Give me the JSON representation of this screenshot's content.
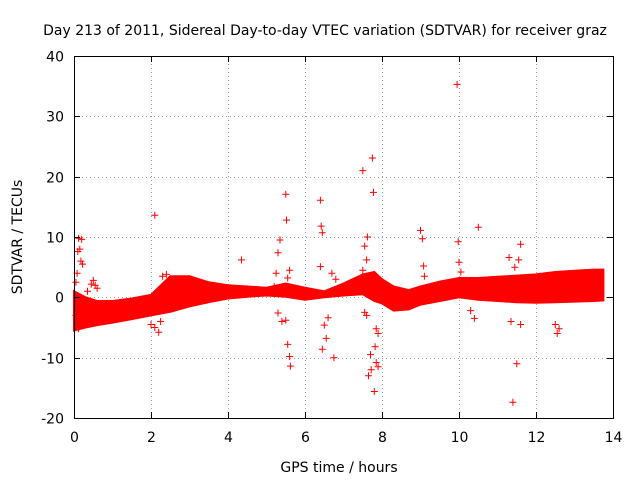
{
  "chart_data": {
    "type": "scatter",
    "title": "Day 213 of 2011, Sidereal Day-to-day VTEC variation (SDTVAR) for receiver graz",
    "xlabel": "GPS time / hours",
    "ylabel": "SDTVAR / TECUs",
    "xlim": [
      0,
      14
    ],
    "ylim": [
      -20,
      40
    ],
    "xticks": [
      "0",
      "2",
      "4",
      "6",
      "8",
      "10",
      "12",
      "14"
    ],
    "yticks": [
      "-20",
      "-10",
      "0",
      "10",
      "20",
      "30",
      "40"
    ],
    "grid": true,
    "marker": "plus",
    "series_color": "#ff0000",
    "band": {
      "x": [
        0.0,
        0.3,
        0.6,
        1.0,
        1.5,
        2.0,
        2.5,
        3.0,
        3.5,
        4.0,
        4.5,
        5.0,
        5.5,
        6.0,
        6.5,
        7.0,
        7.5,
        7.8,
        8.0,
        8.3,
        8.7,
        9.0,
        9.5,
        10.0,
        10.5,
        11.0,
        11.5,
        12.0,
        12.5,
        13.0,
        13.5,
        13.75
      ],
      "low": [
        -5.5,
        -5.0,
        -4.6,
        -4.2,
        -3.6,
        -3.0,
        -2.4,
        -1.5,
        -0.8,
        -0.2,
        0.1,
        0.3,
        0.1,
        -0.4,
        0.0,
        0.3,
        0.5,
        -0.6,
        -1.0,
        -2.2,
        -2.0,
        -1.2,
        -0.6,
        0.0,
        -0.4,
        -0.6,
        -0.8,
        -0.9,
        -0.8,
        -0.7,
        -0.6,
        -0.5
      ],
      "high": [
        1.0,
        0.0,
        -0.6,
        -0.6,
        -0.2,
        0.4,
        3.5,
        3.5,
        2.5,
        2.0,
        1.8,
        1.6,
        2.3,
        1.6,
        1.0,
        2.3,
        3.8,
        4.2,
        3.0,
        1.8,
        1.2,
        1.8,
        2.6,
        3.2,
        3.2,
        3.4,
        3.6,
        3.8,
        4.2,
        4.4,
        4.6,
        4.6
      ]
    },
    "points": [
      [
        0.05,
        2.5
      ],
      [
        0.08,
        4.0
      ],
      [
        0.1,
        7.6
      ],
      [
        0.12,
        9.8
      ],
      [
        0.15,
        8.0
      ],
      [
        0.18,
        6.0
      ],
      [
        0.2,
        9.6
      ],
      [
        0.22,
        5.5
      ],
      [
        0.05,
        -3.0
      ],
      [
        0.08,
        -4.5
      ],
      [
        0.12,
        -5.2
      ],
      [
        0.25,
        -3.8
      ],
      [
        0.35,
        1.0
      ],
      [
        0.45,
        2.2
      ],
      [
        0.5,
        2.8
      ],
      [
        0.55,
        2.0
      ],
      [
        0.6,
        1.5
      ],
      [
        2.1,
        13.6
      ],
      [
        2.0,
        -4.5
      ],
      [
        2.1,
        -5.0
      ],
      [
        2.2,
        -5.8
      ],
      [
        2.25,
        -4.0
      ],
      [
        2.3,
        3.5
      ],
      [
        2.4,
        3.8
      ],
      [
        4.35,
        6.2
      ],
      [
        5.2,
        1.8
      ],
      [
        5.25,
        4.0
      ],
      [
        5.3,
        7.4
      ],
      [
        5.35,
        9.5
      ],
      [
        5.3,
        -2.6
      ],
      [
        5.4,
        -4.0
      ],
      [
        5.5,
        17.1
      ],
      [
        5.52,
        12.8
      ],
      [
        5.55,
        3.2
      ],
      [
        5.6,
        4.5
      ],
      [
        5.5,
        -3.8
      ],
      [
        5.55,
        -7.8
      ],
      [
        5.6,
        -9.8
      ],
      [
        5.62,
        -11.4
      ],
      [
        6.4,
        16.1
      ],
      [
        6.42,
        11.8
      ],
      [
        6.45,
        10.7
      ],
      [
        6.4,
        5.1
      ],
      [
        6.5,
        -4.6
      ],
      [
        6.55,
        -6.8
      ],
      [
        6.6,
        -3.4
      ],
      [
        6.45,
        -8.6
      ],
      [
        6.75,
        -10.0
      ],
      [
        6.7,
        4.0
      ],
      [
        6.8,
        3.0
      ],
      [
        7.5,
        21.0
      ],
      [
        7.5,
        4.5
      ],
      [
        7.55,
        8.5
      ],
      [
        7.6,
        6.2
      ],
      [
        7.62,
        10.0
      ],
      [
        7.55,
        -2.5
      ],
      [
        7.6,
        -3.0
      ],
      [
        7.65,
        -13.0
      ],
      [
        7.7,
        -9.5
      ],
      [
        7.72,
        -12.0
      ],
      [
        7.75,
        23.1
      ],
      [
        7.78,
        17.4
      ],
      [
        7.8,
        -15.6
      ],
      [
        7.82,
        -8.2
      ],
      [
        7.85,
        -10.8
      ],
      [
        7.9,
        -11.5
      ],
      [
        7.85,
        -5.2
      ],
      [
        7.9,
        -6.0
      ],
      [
        9.0,
        11.1
      ],
      [
        9.05,
        9.7
      ],
      [
        9.08,
        5.2
      ],
      [
        9.1,
        3.5
      ],
      [
        9.95,
        35.3
      ],
      [
        9.98,
        9.2
      ],
      [
        10.0,
        5.8
      ],
      [
        10.05,
        4.2
      ],
      [
        10.5,
        11.6
      ],
      [
        10.3,
        -2.2
      ],
      [
        10.4,
        -3.5
      ],
      [
        11.3,
        6.6
      ],
      [
        11.35,
        -4.0
      ],
      [
        11.45,
        5.0
      ],
      [
        11.4,
        -17.4
      ],
      [
        11.6,
        8.8
      ],
      [
        11.55,
        6.2
      ],
      [
        11.5,
        -11.0
      ],
      [
        11.6,
        -4.5
      ],
      [
        12.5,
        -4.5
      ],
      [
        12.55,
        -6.0
      ],
      [
        12.6,
        -5.2
      ]
    ]
  }
}
